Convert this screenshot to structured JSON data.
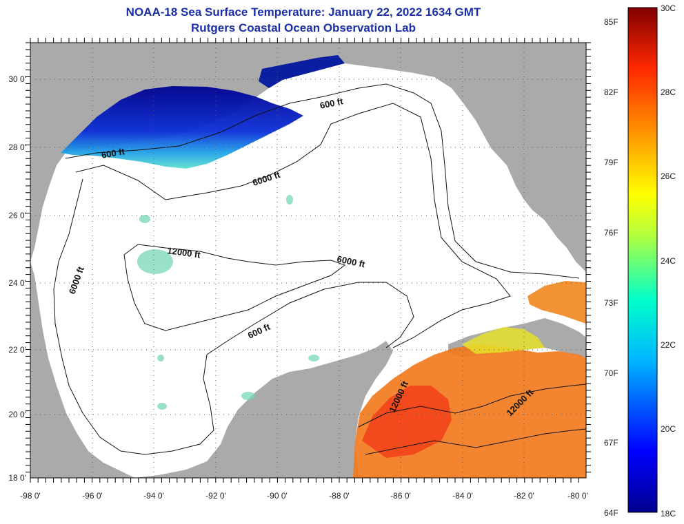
{
  "title": "NOAA-18 Sea Surface Temperature:  January 22, 2022 1634 GMT",
  "subtitle": "Rutgers Coastal Ocean Observation Lab",
  "colors": {
    "land": "#aaaaaa",
    "ocean": "#ffffff",
    "title": "#1a2fa8"
  },
  "axes": {
    "lon_labels": [
      "-98 0'",
      "-96 0'",
      "-94 0'",
      "-92 0'",
      "-90 0'",
      "-88 0'",
      "-86 0'",
      "-84 0'",
      "-82 0'",
      "-80 0'"
    ],
    "lat_labels": [
      "30 0'",
      "28 0'",
      "26 0'",
      "24 0'",
      "22 0'",
      "20 0'",
      "18 0'"
    ]
  },
  "contour_labels": [
    {
      "text": "600 ft",
      "id": "c600-north-e"
    },
    {
      "text": "600 ft",
      "id": "c600-north-w"
    },
    {
      "text": "6000 ft",
      "id": "c6000-north"
    },
    {
      "text": "12000 ft",
      "id": "c12000-center"
    },
    {
      "text": "6000 ft",
      "id": "c6000-center"
    },
    {
      "text": "6000 ft",
      "id": "c6000-west"
    },
    {
      "text": "600 ft",
      "id": "c600-yucatan"
    },
    {
      "text": "12000 ft",
      "id": "c12000-carib-w"
    },
    {
      "text": "12000 ft",
      "id": "c12000-carib-e"
    }
  ],
  "colorbar": {
    "fahrenheit": [
      "85F",
      "82F",
      "79F",
      "76F",
      "73F",
      "70F",
      "67F",
      "64F"
    ],
    "celsius": [
      "30C",
      "28C",
      "26C",
      "24C",
      "22C",
      "20C",
      "18C"
    ]
  }
}
